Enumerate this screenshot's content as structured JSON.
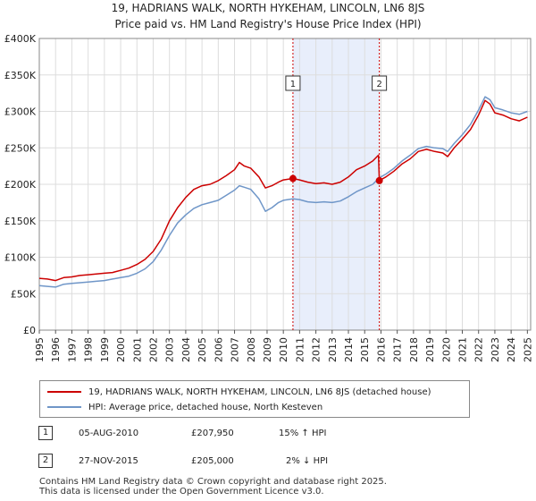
{
  "title_line1": "19, HADRIANS WALK, NORTH HYKEHAM, LINCOLN, LN6 8JS",
  "title_line2": "Price paid vs. HM Land Registry's House Price Index (HPI)",
  "legend": {
    "red_label": "19, HADRIANS WALK, NORTH HYKEHAM, LINCOLN, LN6 8JS (detached house)",
    "blue_label": "HPI: Average price, detached house, North Kesteven"
  },
  "transactions": [
    {
      "num": "1",
      "date": "05-AUG-2010",
      "price": "£207,950",
      "hpi": "15% ↑ HPI"
    },
    {
      "num": "2",
      "date": "27-NOV-2015",
      "price": "£205,000",
      "hpi": "2% ↓ HPI"
    }
  ],
  "footer": {
    "line1": "Contains HM Land Registry data © Crown copyright and database right 2025.",
    "line2": "This data is licensed under the Open Government Licence v3.0."
  },
  "colors": {
    "red": "#cc0000",
    "blue": "#6f96c8",
    "shade": "#e8eefb",
    "grid": "#dddddd"
  },
  "chart_data": {
    "type": "line",
    "title": "19, HADRIANS WALK, NORTH HYKEHAM, LINCOLN, LN6 8JS",
    "subtitle": "Price paid vs. HM Land Registry's House Price Index (HPI)",
    "xlim": [
      1995,
      2025.2
    ],
    "ylim": [
      0,
      400000
    ],
    "x_ticks": [
      1995,
      1996,
      1997,
      1998,
      1999,
      2000,
      2001,
      2002,
      2003,
      2004,
      2005,
      2006,
      2007,
      2008,
      2009,
      2010,
      2011,
      2012,
      2013,
      2014,
      2015,
      2016,
      2017,
      2018,
      2019,
      2020,
      2021,
      2022,
      2023,
      2024,
      2025
    ],
    "y_ticks": [
      0,
      50000,
      100000,
      150000,
      200000,
      250000,
      300000,
      350000,
      400000
    ],
    "y_tick_labels": [
      "£0",
      "£50K",
      "£100K",
      "£150K",
      "£200K",
      "£250K",
      "£300K",
      "£350K",
      "£400K"
    ],
    "shaded_period": [
      2010.59,
      2015.9
    ],
    "markers": [
      {
        "label": "1",
        "x": 2010.59,
        "y": 207950
      },
      {
        "label": "2",
        "x": 2015.9,
        "y": 205000
      }
    ],
    "series": [
      {
        "name": "19, HADRIANS WALK, NORTH HYKEHAM, LINCOLN, LN6 8JS (detached house)",
        "color": "#cc0000",
        "points": [
          [
            1995.0,
            71000
          ],
          [
            1995.5,
            70000
          ],
          [
            1996.0,
            68000
          ],
          [
            1996.5,
            72000
          ],
          [
            1997.0,
            73000
          ],
          [
            1997.5,
            75000
          ],
          [
            1998.0,
            76000
          ],
          [
            1998.5,
            77000
          ],
          [
            1999.0,
            78000
          ],
          [
            1999.5,
            79000
          ],
          [
            2000.0,
            82000
          ],
          [
            2000.5,
            85000
          ],
          [
            2001.0,
            90000
          ],
          [
            2001.5,
            97000
          ],
          [
            2002.0,
            108000
          ],
          [
            2002.5,
            125000
          ],
          [
            2003.0,
            150000
          ],
          [
            2003.5,
            168000
          ],
          [
            2004.0,
            182000
          ],
          [
            2004.5,
            193000
          ],
          [
            2005.0,
            198000
          ],
          [
            2005.5,
            200000
          ],
          [
            2006.0,
            205000
          ],
          [
            2006.5,
            212000
          ],
          [
            2007.0,
            220000
          ],
          [
            2007.3,
            230000
          ],
          [
            2007.6,
            225000
          ],
          [
            2008.0,
            222000
          ],
          [
            2008.5,
            210000
          ],
          [
            2008.9,
            195000
          ],
          [
            2009.3,
            198000
          ],
          [
            2009.7,
            203000
          ],
          [
            2010.0,
            206000
          ],
          [
            2010.59,
            207950
          ],
          [
            2011.0,
            206000
          ],
          [
            2011.5,
            203000
          ],
          [
            2012.0,
            201000
          ],
          [
            2012.5,
            202000
          ],
          [
            2013.0,
            200000
          ],
          [
            2013.5,
            203000
          ],
          [
            2014.0,
            210000
          ],
          [
            2014.5,
            220000
          ],
          [
            2015.0,
            225000
          ],
          [
            2015.5,
            232000
          ],
          [
            2015.85,
            240000
          ],
          [
            2015.9,
            205000
          ],
          [
            2016.3,
            210000
          ],
          [
            2016.8,
            218000
          ],
          [
            2017.3,
            228000
          ],
          [
            2017.8,
            235000
          ],
          [
            2018.3,
            245000
          ],
          [
            2018.8,
            248000
          ],
          [
            2019.3,
            245000
          ],
          [
            2019.8,
            243000
          ],
          [
            2020.1,
            238000
          ],
          [
            2020.5,
            250000
          ],
          [
            2021.0,
            262000
          ],
          [
            2021.5,
            275000
          ],
          [
            2022.0,
            295000
          ],
          [
            2022.4,
            315000
          ],
          [
            2022.7,
            310000
          ],
          [
            2023.0,
            298000
          ],
          [
            2023.5,
            295000
          ],
          [
            2024.0,
            290000
          ],
          [
            2024.5,
            287000
          ],
          [
            2025.0,
            292000
          ]
        ]
      },
      {
        "name": "HPI: Average price, detached house, North Kesteven",
        "color": "#6f96c8",
        "points": [
          [
            1995.0,
            61000
          ],
          [
            1995.5,
            60000
          ],
          [
            1996.0,
            59000
          ],
          [
            1996.5,
            63000
          ],
          [
            1997.0,
            64000
          ],
          [
            1997.5,
            65000
          ],
          [
            1998.0,
            66000
          ],
          [
            1998.5,
            67000
          ],
          [
            1999.0,
            68000
          ],
          [
            1999.5,
            70000
          ],
          [
            2000.0,
            72000
          ],
          [
            2000.5,
            74000
          ],
          [
            2001.0,
            78000
          ],
          [
            2001.5,
            84000
          ],
          [
            2002.0,
            94000
          ],
          [
            2002.5,
            110000
          ],
          [
            2003.0,
            130000
          ],
          [
            2003.5,
            147000
          ],
          [
            2004.0,
            158000
          ],
          [
            2004.5,
            167000
          ],
          [
            2005.0,
            172000
          ],
          [
            2005.5,
            175000
          ],
          [
            2006.0,
            178000
          ],
          [
            2006.5,
            185000
          ],
          [
            2007.0,
            192000
          ],
          [
            2007.3,
            198000
          ],
          [
            2007.6,
            196000
          ],
          [
            2008.0,
            193000
          ],
          [
            2008.5,
            180000
          ],
          [
            2008.9,
            163000
          ],
          [
            2009.3,
            168000
          ],
          [
            2009.7,
            175000
          ],
          [
            2010.0,
            178000
          ],
          [
            2010.59,
            180000
          ],
          [
            2011.0,
            179000
          ],
          [
            2011.5,
            176000
          ],
          [
            2012.0,
            175000
          ],
          [
            2012.5,
            176000
          ],
          [
            2013.0,
            175000
          ],
          [
            2013.5,
            177000
          ],
          [
            2014.0,
            183000
          ],
          [
            2014.5,
            190000
          ],
          [
            2015.0,
            195000
          ],
          [
            2015.5,
            200000
          ],
          [
            2015.9,
            209000
          ],
          [
            2016.3,
            214000
          ],
          [
            2016.8,
            222000
          ],
          [
            2017.3,
            232000
          ],
          [
            2017.8,
            240000
          ],
          [
            2018.3,
            249000
          ],
          [
            2018.8,
            252000
          ],
          [
            2019.3,
            250000
          ],
          [
            2019.8,
            249000
          ],
          [
            2020.1,
            245000
          ],
          [
            2020.5,
            256000
          ],
          [
            2021.0,
            268000
          ],
          [
            2021.5,
            282000
          ],
          [
            2022.0,
            302000
          ],
          [
            2022.4,
            320000
          ],
          [
            2022.7,
            316000
          ],
          [
            2023.0,
            305000
          ],
          [
            2023.5,
            302000
          ],
          [
            2024.0,
            298000
          ],
          [
            2024.5,
            296000
          ],
          [
            2025.0,
            300000
          ]
        ]
      }
    ]
  }
}
